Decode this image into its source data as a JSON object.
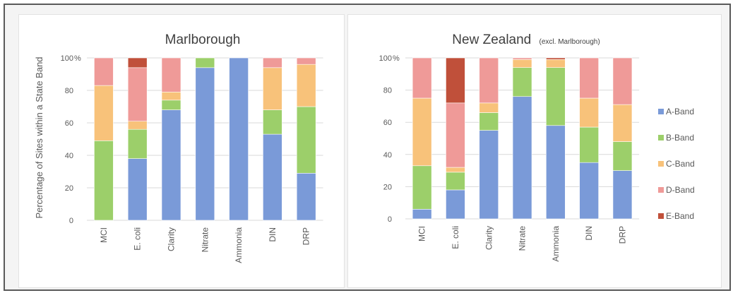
{
  "chart_data": [
    {
      "type": "bar",
      "stacked": true,
      "title": "Marlborough",
      "subtitle": "",
      "ylabel": "Percentage of Sites within a State Band",
      "ylim": [
        0,
        100
      ],
      "yticks": [
        "0",
        "20",
        "40",
        "60",
        "80",
        "100"
      ],
      "y_unit": "%",
      "grid": true,
      "categories": [
        "MCI",
        "E. coli",
        "Clarity",
        "Nitrate",
        "Ammonia",
        "DIN",
        "DRP"
      ],
      "series": [
        {
          "name": "A-Band",
          "values": [
            0,
            38,
            68,
            94,
            100,
            53,
            29
          ]
        },
        {
          "name": "B-Band",
          "values": [
            49,
            18,
            6,
            6,
            0,
            15,
            41
          ]
        },
        {
          "name": "C-Band",
          "values": [
            34,
            5,
            5,
            0,
            0,
            26,
            26
          ]
        },
        {
          "name": "D-Band",
          "values": [
            17,
            33,
            21,
            0,
            0,
            6,
            4
          ]
        },
        {
          "name": "E-Band",
          "values": [
            0,
            6,
            0,
            0,
            0,
            0,
            0
          ]
        }
      ]
    },
    {
      "type": "bar",
      "stacked": true,
      "title": "New Zealand",
      "subtitle": "(excl. Marlborough)",
      "ylabel": "",
      "ylim": [
        0,
        100
      ],
      "yticks": [
        "0",
        "20",
        "40",
        "60",
        "80",
        "100"
      ],
      "y_unit": "%",
      "grid": true,
      "legend_position": "right",
      "categories": [
        "MCI",
        "E. coli",
        "Clarity",
        "Nitrate",
        "Ammonia",
        "DIN",
        "DRP"
      ],
      "series": [
        {
          "name": "A-Band",
          "values": [
            6,
            18,
            55,
            76,
            58,
            35,
            30
          ]
        },
        {
          "name": "B-Band",
          "values": [
            27,
            11,
            11,
            18,
            36,
            22,
            18
          ]
        },
        {
          "name": "C-Band",
          "values": [
            42,
            3,
            6,
            5,
            5,
            18,
            23
          ]
        },
        {
          "name": "D-Band",
          "values": [
            25,
            40,
            28,
            1,
            0,
            25,
            29
          ]
        },
        {
          "name": "E-Band",
          "values": [
            0,
            28,
            0,
            0,
            1,
            0,
            0
          ]
        }
      ]
    }
  ],
  "colors": {
    "A-Band": "#7a9ad8",
    "B-Band": "#9ccf6a",
    "C-Band": "#f8c27a",
    "D-Band": "#ef9a98",
    "E-Band": "#c0503a",
    "grid": "#d9d9d9",
    "axis_text": "#595959",
    "title_text": "#404040"
  }
}
